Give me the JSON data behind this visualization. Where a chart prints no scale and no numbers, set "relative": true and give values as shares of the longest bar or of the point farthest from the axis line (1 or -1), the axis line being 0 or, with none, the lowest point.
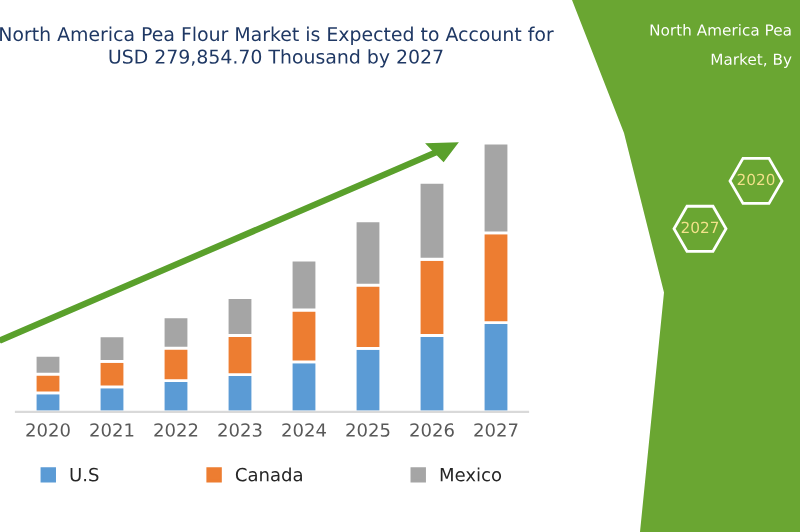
{
  "chart_data": {
    "type": "bar",
    "title": "North America Pea Flour Market is Expected to Account for\nUSD 279,854.70 Thousand by 2027",
    "categories": [
      "2020",
      "2021",
      "2022",
      "2023",
      "2024",
      "2025",
      "2026",
      "2027"
    ],
    "stacked": true,
    "relative": true,
    "legend": "bottom",
    "grid": false,
    "series": [
      {
        "name": "U.S",
        "color": "#5b9bd5",
        "values": [
          0.07,
          0.093,
          0.116,
          0.138,
          0.186,
          0.236,
          0.284,
          0.332
        ]
      },
      {
        "name": "Canada",
        "color": "#ed7d31",
        "values": [
          0.07,
          0.095,
          0.121,
          0.146,
          0.193,
          0.236,
          0.284,
          0.334
        ]
      },
      {
        "name": "Mexico",
        "color": "#a5a5a5",
        "values": [
          0.07,
          0.095,
          0.116,
          0.141,
          0.186,
          0.239,
          0.286,
          0.334
        ]
      }
    ],
    "annotations": [
      "North America Pea",
      "Market, By",
      "2027",
      "2020"
    ]
  }
}
